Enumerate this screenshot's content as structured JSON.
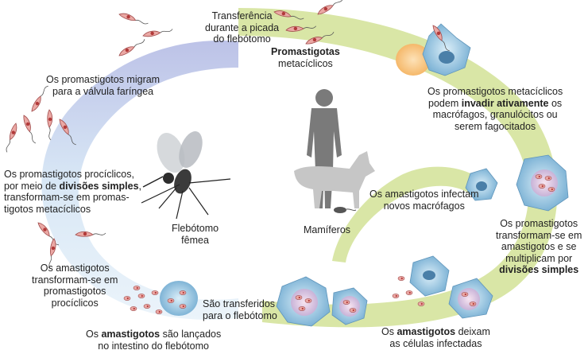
{
  "labels": {
    "transfer": [
      "Transferência",
      "durante a picada",
      "do flebótomo"
    ],
    "metacyclic_title": "Promastigotas",
    "metacyclic_sub": "metacíclicos",
    "invade_pre": "Os promastigotos metacíclicos",
    "invade_mid_pre": "podem ",
    "invade_bold": "invadir ativamente",
    "invade_mid_post": " os",
    "invade_l3": "macrófagos, granulócitos ou",
    "invade_l4": "serem fagocitados",
    "migrate": [
      "Os promastigotos migram",
      "para a válvula faríngea"
    ],
    "procyclic_l1": "Os promastigotos procíclicos,",
    "procyclic_l2_pre": "por meio de ",
    "procyclic_l2_bold": "divisões simples",
    "procyclic_l2_post": ",",
    "procyclic_l3": "transformam-se em promas-",
    "procyclic_l4": "tigotos metacíclicos",
    "sandfly": [
      "Flebótomo",
      "fêmea"
    ],
    "mammals": "Mamíferos",
    "infect": [
      "Os amastigotos infectam",
      "novos macrófagos"
    ],
    "transform_l1": "Os promastigotos",
    "transform_l2": "transformam-se em",
    "transform_l3": "amastigotos e se",
    "transform_l4": "multiplicam por",
    "transform_bold": "divisões simples",
    "amast_transform": [
      "Os amastigotos",
      "transformam-se em",
      "promastigotos",
      "procíclicos"
    ],
    "transferred": [
      "São transferidos",
      "para o flebótomo"
    ],
    "released_pre": "Os ",
    "released_bold": "amastigotos",
    "released_post": " são lançados",
    "released_l2": "no intestino do flebótomo",
    "leave_pre": "Os ",
    "leave_bold": "amastigotos",
    "leave_post": " deixam",
    "leave_l2": "as células infectadas"
  },
  "colors": {
    "right_arc": "#d6e4a0",
    "left_arc_top": "#c3c8e8",
    "left_arc_bottom": "#d4e8f4",
    "parasite": "#e9a8a3",
    "parasite_dark": "#b23a3a",
    "cell": "#a8cfe6",
    "cell_nucleus": "#4a7fa8",
    "silhouette": "#7d7d7d",
    "silhouette_light": "#c9c9c9"
  }
}
